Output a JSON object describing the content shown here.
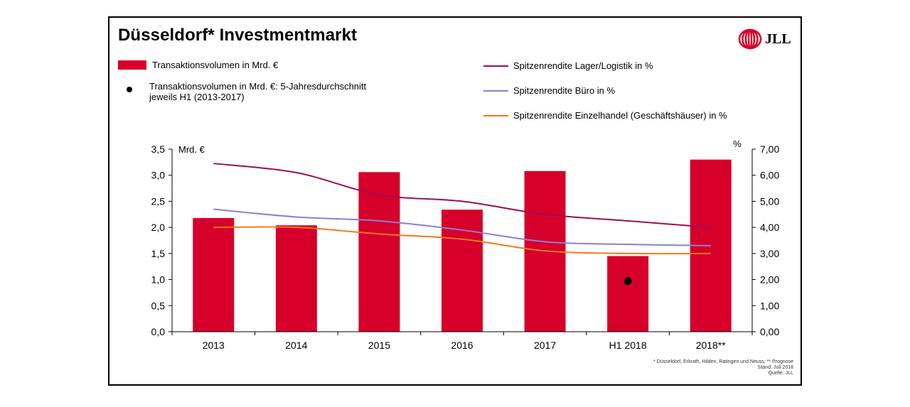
{
  "title": "Düsseldorf* Investmentmarkt",
  "logo": {
    "text": "JLL",
    "icon": "jll-logo-icon"
  },
  "colors": {
    "bar": "#D6002A",
    "logistik": "#9B0F55",
    "buero": "#8A7FD6",
    "einzelhandel": "#F07A1E",
    "dot": "#000000"
  },
  "legend": {
    "bar": "Transaktionsvolumen in Mrd. €",
    "dot": "Transaktionsvolumen in Mrd. €: 5-Jahresdurchschnitt\njeweils H1 (2013-2017)",
    "logistik": "Spitzenrendite Lager/Logistik in %",
    "buero": "Spitzenrendite Büro in %",
    "einzelhandel": "Spitzenrendite Einzelhandel (Geschäftshäuser) in %"
  },
  "footnote": {
    "line1": "* Düsseldorf, Erkrath, Hilden, Ratingen und Neuss; ** Prognose",
    "line2": "Stand: Juli 2018",
    "line3": "Quelle: JLL"
  },
  "chart_data": {
    "type": "bar",
    "categories": [
      "2013",
      "2014",
      "2015",
      "2016",
      "2017",
      "H1 2018",
      "2018**"
    ],
    "ylabel_left": "Mrd. €",
    "ylabel_right": "%",
    "ylim_left": [
      0,
      3.5
    ],
    "ylim_right": [
      0,
      7
    ],
    "yticks_left": [
      "0,0",
      "0,5",
      "1,0",
      "1,5",
      "2,0",
      "2,5",
      "3,0",
      "3,5"
    ],
    "yticks_right": [
      "0,00",
      "1,00",
      "2,00",
      "3,00",
      "4,00",
      "5,00",
      "6,00",
      "7,00"
    ],
    "bars": {
      "name": "Transaktionsvolumen in Mrd. €",
      "values": [
        2.18,
        2.04,
        3.06,
        2.34,
        3.08,
        1.45,
        3.3
      ]
    },
    "dot": {
      "name": "Transaktionsvolumen in Mrd. €: 5-Jahresdurchschnitt jeweils H1 (2013-2017)",
      "category": "H1 2018",
      "value": 0.97
    },
    "series": [
      {
        "name": "Spitzenrendite Lager/Logistik in %",
        "axis": "right",
        "values": [
          6.45,
          6.1,
          5.25,
          5.0,
          4.5,
          4.25,
          4.0
        ]
      },
      {
        "name": "Spitzenrendite Büro in %",
        "axis": "right",
        "values": [
          4.7,
          4.4,
          4.25,
          3.9,
          3.45,
          3.35,
          3.3
        ]
      },
      {
        "name": "Spitzenrendite Einzelhandel (Geschäftshäuser) in %",
        "axis": "right",
        "values": [
          4.0,
          4.0,
          3.75,
          3.55,
          3.1,
          3.0,
          3.0
        ]
      }
    ],
    "grid": false
  }
}
